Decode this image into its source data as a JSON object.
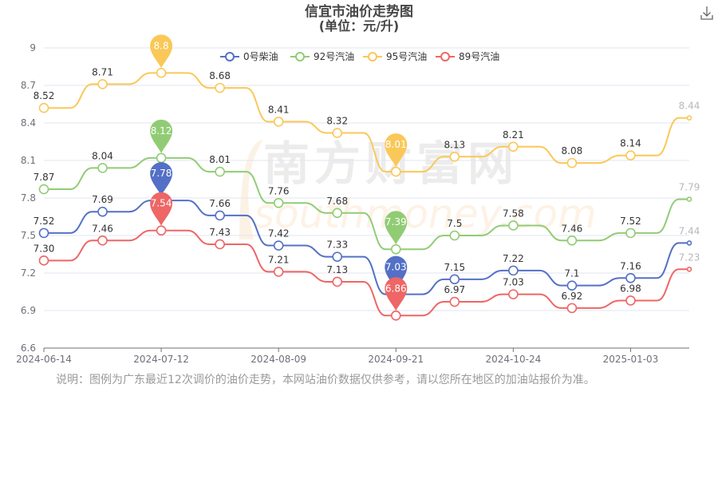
{
  "chart_data": {
    "type": "line",
    "title": "信宜市油价走势图",
    "subtitle": "(单位：元/升)",
    "x": [
      "2024-06-14",
      "",
      "2024-07-12",
      "",
      "2024-08-09",
      "",
      "2024-09-21",
      "",
      "2024-10-24",
      "",
      "2025-01-03",
      ""
    ],
    "x_tick_labels": [
      "2024-06-14",
      "2024-07-12",
      "2024-08-09",
      "2024-09-21",
      "2024-10-24",
      "2025-01-03"
    ],
    "ylim": [
      6.6,
      9
    ],
    "y_ticks": [
      "6.6",
      "6.9",
      "7.2",
      "7.5",
      "7.8",
      "8.1",
      "8.4",
      "8.7",
      "9"
    ],
    "grid": true,
    "legend_position": "top-center",
    "series": [
      {
        "name": "0号柴油",
        "color": "#5470c6",
        "values": [
          7.52,
          7.69,
          7.78,
          7.66,
          7.42,
          7.33,
          7.03,
          7.15,
          7.22,
          7.1,
          7.16,
          7.44
        ],
        "labels": [
          "7.52",
          "7.69",
          "7.78",
          "7.66",
          "7.42",
          "7.33",
          "7.03",
          "7.15",
          "7.22",
          "7.1",
          "7.16",
          "7.44"
        ],
        "max_index": 2,
        "min_index": 6
      },
      {
        "name": "92号汽油",
        "color": "#91cc75",
        "values": [
          7.87,
          8.04,
          8.12,
          8.01,
          7.76,
          7.68,
          7.39,
          7.5,
          7.58,
          7.46,
          7.52,
          7.79
        ],
        "labels": [
          "7.87",
          "8.04",
          "8.12",
          "8.01",
          "7.76",
          "7.68",
          "7.39",
          "7.5",
          "7.58",
          "7.46",
          "7.52",
          "7.79"
        ],
        "max_index": 2,
        "min_index": 6
      },
      {
        "name": "95号汽油",
        "color": "#fac858",
        "values": [
          8.52,
          8.71,
          8.8,
          8.68,
          8.41,
          8.32,
          8.01,
          8.13,
          8.21,
          8.08,
          8.14,
          8.44
        ],
        "labels": [
          "8.52",
          "8.71",
          "8.8",
          "8.68",
          "8.41",
          "8.32",
          "8.01",
          "8.13",
          "8.21",
          "8.08",
          "8.14",
          "8.44"
        ],
        "max_index": 2,
        "min_index": 6
      },
      {
        "name": "89号汽油",
        "color": "#ee6666",
        "values": [
          7.3,
          7.46,
          7.54,
          7.43,
          7.21,
          7.13,
          6.86,
          6.97,
          7.03,
          6.92,
          6.98,
          7.23
        ],
        "labels": [
          "7.30",
          "7.46",
          "7.54",
          "7.43",
          "7.21",
          "7.13",
          "6.86",
          "6.97",
          "7.03",
          "6.92",
          "6.98",
          "7.23"
        ],
        "max_index": 2,
        "min_index": 6
      }
    ]
  },
  "watermark": {
    "cn": "南方财富网",
    "en": "southmoney.com"
  },
  "note": "说明：图例为广东最近12次调价的油价走势，本网站油价数据仅供参考，请以您所在地区的加油站报价为准。",
  "icons": {
    "download": "download-icon"
  }
}
